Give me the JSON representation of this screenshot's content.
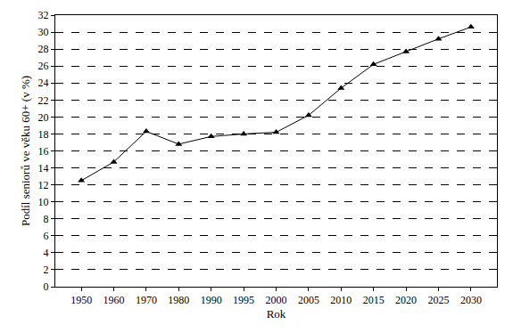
{
  "chart_data": {
    "type": "line",
    "x_label": "Rok",
    "y_label": "Podíl seniorů ve věku 60+ (v %)",
    "categories": [
      "1950",
      "1960",
      "1970",
      "1980",
      "1990",
      "1995",
      "2000",
      "2005",
      "2010",
      "2015",
      "2020",
      "2025",
      "2030"
    ],
    "values": [
      12.5,
      14.7,
      18.3,
      16.8,
      17.7,
      18.0,
      18.2,
      20.2,
      23.4,
      26.2,
      27.7,
      29.2,
      30.6
    ],
    "color": "#000000",
    "marker": "triangle-up",
    "line_style": "solid",
    "ylim": [
      0,
      32
    ],
    "yticks": [
      0,
      2,
      4,
      6,
      8,
      10,
      12,
      14,
      16,
      18,
      20,
      22,
      24,
      26,
      28,
      30,
      32
    ],
    "grid": true
  }
}
